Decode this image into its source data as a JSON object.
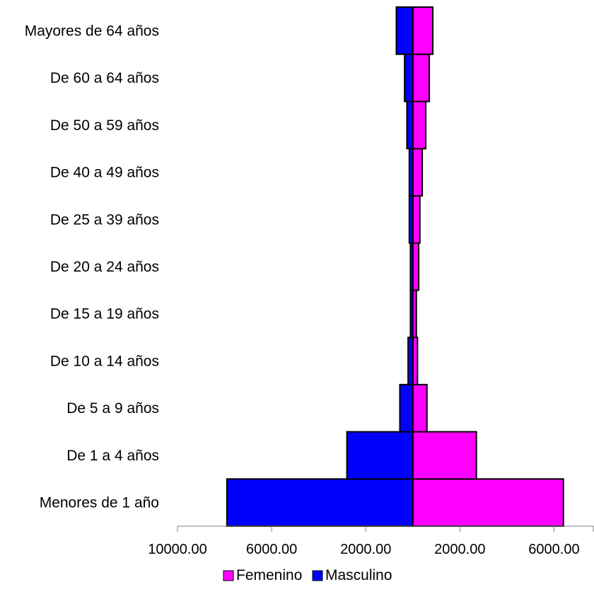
{
  "chart_data": {
    "type": "bar",
    "orientation": "horizontal",
    "layout": "population-pyramid",
    "categories": [
      "Menores de 1 año",
      "De 1 a 4 años",
      "De 5 a 9 años",
      "De 10 a 14 años",
      "De 15 a 19 años",
      "De 20 a 24 años",
      "De 25 a 39 años",
      "De 40 a 49 años",
      "De 50 a 59 años",
      "De 60 a 64 años",
      "Mayores de 64 años"
    ],
    "series": [
      {
        "name": "Femenino",
        "color": "#ff00ff",
        "values": [
          6400,
          2700,
          600,
          200,
          150,
          250,
          300,
          400,
          550,
          700,
          850
        ]
      },
      {
        "name": "Masculino",
        "color": "#0000ff",
        "direction": "left",
        "values": [
          7900,
          2800,
          550,
          200,
          100,
          100,
          150,
          150,
          250,
          350,
          700
        ]
      }
    ],
    "xlim": [
      -10000,
      7700
    ],
    "xticks": [
      {
        "value": -10000,
        "label": "10000.00"
      },
      {
        "value": -6000,
        "label": "6000.00"
      },
      {
        "value": -2000,
        "label": "2000.00"
      },
      {
        "value": 2000,
        "label": "2000.00"
      },
      {
        "value": 6000,
        "label": "6000.00"
      }
    ],
    "title": "",
    "xlabel": "",
    "ylabel": "",
    "grid": false,
    "legend": {
      "position": "bottom",
      "items": [
        {
          "label": "Femenino",
          "color": "#ff00ff"
        },
        {
          "label": "Masculino",
          "color": "#0000ff"
        }
      ]
    }
  }
}
